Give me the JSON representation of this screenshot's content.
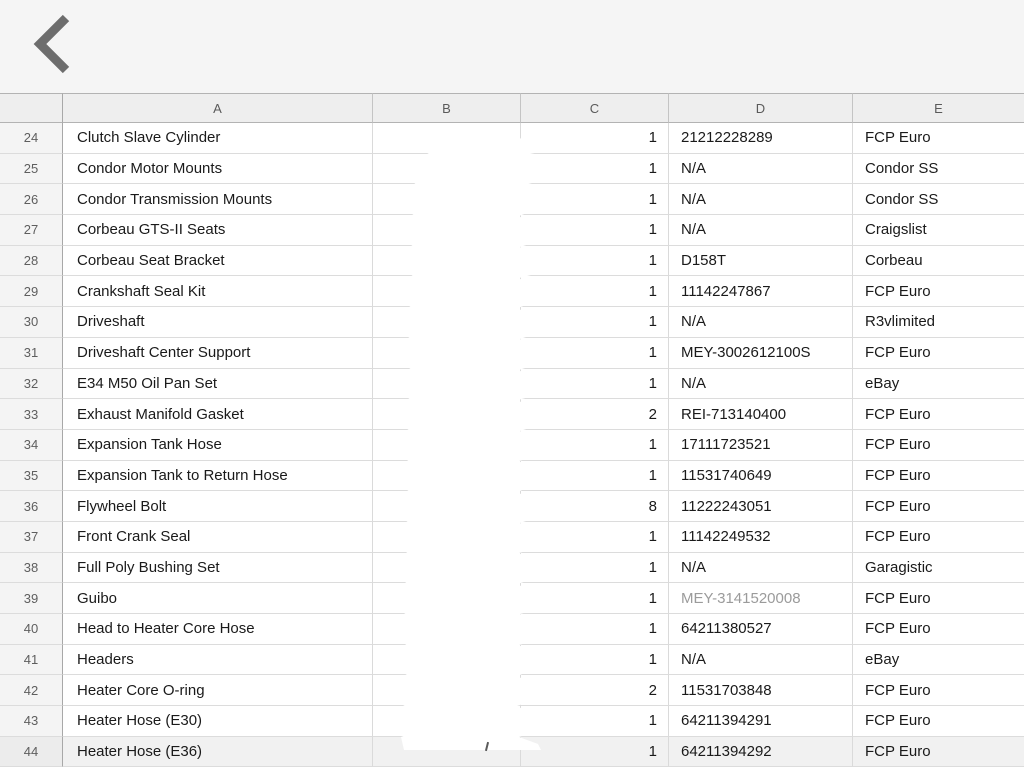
{
  "nav": {
    "back_icon": "chevron-left"
  },
  "colors": {
    "topbar_bg": "#f5f5f5",
    "header_bg": "#eeeeee",
    "gridline": "#dcdcdc",
    "cell_text": "#1a1a1a",
    "muted_text": "#9b9b9b",
    "back_icon": "#6d6d6d"
  },
  "sheet": {
    "col_headers": [
      "A",
      "B",
      "C",
      "D",
      "E"
    ],
    "rows": [
      {
        "num": "24",
        "a": "Clutch Slave Cylinder",
        "b": "",
        "c": "1",
        "d": "21212228289",
        "e": "FCP Euro"
      },
      {
        "num": "25",
        "a": "Condor Motor Mounts",
        "b": "",
        "c": "1",
        "d": "N/A",
        "e": "Condor SS"
      },
      {
        "num": "26",
        "a": "Condor Transmission Mounts",
        "b": "",
        "c": "1",
        "d": "N/A",
        "e": "Condor SS"
      },
      {
        "num": "27",
        "a": "Corbeau GTS-II Seats",
        "b": "",
        "c": "1",
        "d": "N/A",
        "e": "Craigslist"
      },
      {
        "num": "28",
        "a": "Corbeau Seat Bracket",
        "b": "",
        "c": "1",
        "d": "D158T",
        "e": "Corbeau"
      },
      {
        "num": "29",
        "a": "Crankshaft Seal Kit",
        "b": "",
        "c": "1",
        "d": "11142247867",
        "e": "FCP Euro"
      },
      {
        "num": "30",
        "a": "Driveshaft",
        "b": "",
        "c": "1",
        "d": "N/A",
        "e": "R3vlimited"
      },
      {
        "num": "31",
        "a": "Driveshaft Center Support",
        "b": "",
        "c": "1",
        "d": "MEY-3002612100S",
        "e": "FCP Euro"
      },
      {
        "num": "32",
        "a": "E34 M50 Oil Pan Set",
        "b": "",
        "c": "1",
        "d": "N/A",
        "e": "eBay"
      },
      {
        "num": "33",
        "a": "Exhaust Manifold Gasket",
        "b": "",
        "c": "2",
        "d": "REI-713140400",
        "e": "FCP Euro"
      },
      {
        "num": "34",
        "a": "Expansion Tank Hose",
        "b": "",
        "c": "1",
        "d": "17111723521",
        "e": "FCP Euro"
      },
      {
        "num": "35",
        "a": "Expansion Tank to Return Hose",
        "b": "",
        "c": "1",
        "d": "11531740649",
        "e": "FCP Euro"
      },
      {
        "num": "36",
        "a": "Flywheel Bolt",
        "b": "",
        "c": "8",
        "d": "11222243051",
        "e": "FCP Euro"
      },
      {
        "num": "37",
        "a": "Front Crank Seal",
        "b": "",
        "c": "1",
        "d": "11142249532",
        "e": "FCP Euro"
      },
      {
        "num": "38",
        "a": "Full Poly Bushing Set",
        "b": "",
        "c": "1",
        "d": "N/A",
        "e": "Garagistic"
      },
      {
        "num": "39",
        "a": "Guibo",
        "b": "",
        "c": "1",
        "d": "MEY-3141520008",
        "e": "FCP Euro",
        "d_muted": true
      },
      {
        "num": "40",
        "a": "Head to Heater Core Hose",
        "b": "",
        "c": "1",
        "d": "64211380527",
        "e": "FCP Euro"
      },
      {
        "num": "41",
        "a": "Headers",
        "b": "",
        "c": "1",
        "d": "N/A",
        "e": "eBay"
      },
      {
        "num": "42",
        "a": "Heater Core O-ring",
        "b": "",
        "c": "2",
        "d": "11531703848",
        "e": "FCP Euro"
      },
      {
        "num": "43",
        "a": "Heater Hose (E30)",
        "b": "",
        "c": "1",
        "d": "64211394291",
        "e": "FCP Euro"
      },
      {
        "num": "44",
        "a": "Heater Hose (E36)",
        "b": "",
        "c": "1",
        "d": "64211394292",
        "e": "FCP Euro",
        "clipped": true
      }
    ]
  }
}
